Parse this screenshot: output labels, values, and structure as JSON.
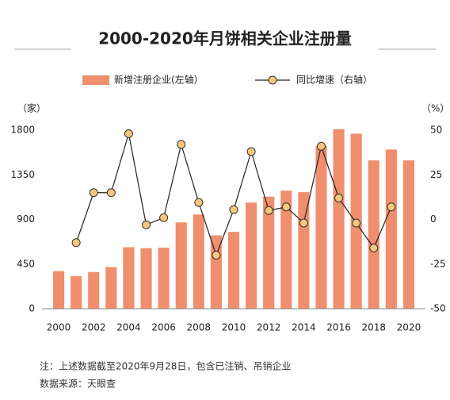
{
  "chart_data": {
    "type": "combo",
    "title": "2000-2020年月饼相关企业注册量",
    "y_label": "（家）",
    "y2_label": "（%）",
    "categories": [
      "2000",
      null,
      "2002",
      null,
      "2004",
      null,
      "2006",
      null,
      "2008",
      null,
      "2010",
      null,
      "2012",
      null,
      "2014",
      null,
      "2016",
      null,
      "2018",
      null,
      "2020"
    ],
    "series": [
      {
        "name": "新增注册企业(左轴）",
        "type": "bar",
        "color": "#ef8f6d",
        "values": [
          380,
          330,
          370,
          420,
          620,
          610,
          615,
          870,
          950,
          740,
          775,
          1070,
          1130,
          1190,
          1175,
          1640,
          1810,
          1765,
          1495,
          1605,
          1495
        ]
      },
      {
        "name": "同比增速（右轴）",
        "type": "line",
        "axis": "y2",
        "color": "#222222",
        "marker_color": "#f6c77c",
        "values": [
          null,
          -13,
          15,
          15,
          48,
          -3,
          1,
          42,
          9.5,
          -20,
          5.5,
          38,
          5,
          7,
          -2,
          41,
          12,
          -2,
          -16,
          7,
          null
        ]
      }
    ],
    "ylim": [
      0,
      1800
    ],
    "yticks": [
      0,
      450,
      900,
      1350,
      1800
    ],
    "y2lim": [
      -50,
      50
    ],
    "y2ticks": [
      -50,
      -25,
      0,
      25,
      50
    ],
    "legend": "top",
    "notes": [
      "注：上述数据截至2020年9月28日，包含已注销、吊销企业",
      "数据来源：天眼查"
    ]
  }
}
